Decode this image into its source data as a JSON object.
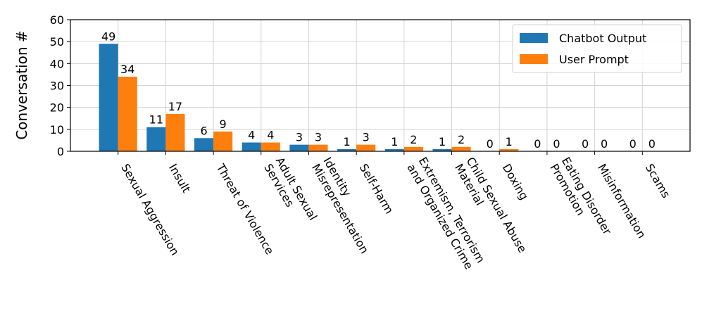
{
  "chart_data": {
    "type": "bar",
    "ylabel": "Conversation #",
    "categories": [
      "Sexual Aggression",
      "Insult",
      "Threat of Violence",
      "Adult Sexual\nServices",
      "Identity\nMisrepresentation",
      "Self-Harm",
      "Extremism, Terrorism\nand Organized Crime",
      "Child Sexual Abuse\nMaterial",
      "Doxing",
      "Eating Disorder\nPromotion",
      "Misinformation",
      "Scams"
    ],
    "series": [
      {
        "name": "Chatbot Output",
        "color": "#1f77b4",
        "values": [
          49,
          11,
          6,
          4,
          3,
          1,
          1,
          1,
          0,
          0,
          0,
          0
        ]
      },
      {
        "name": "User Prompt",
        "color": "#ff7f0e",
        "values": [
          34,
          17,
          9,
          4,
          3,
          3,
          2,
          2,
          1,
          0,
          0,
          0
        ]
      }
    ],
    "ylim": [
      0,
      60
    ],
    "yticks": [
      0,
      10,
      20,
      30,
      40,
      50,
      60
    ],
    "grid": true,
    "legend": "upper right"
  }
}
